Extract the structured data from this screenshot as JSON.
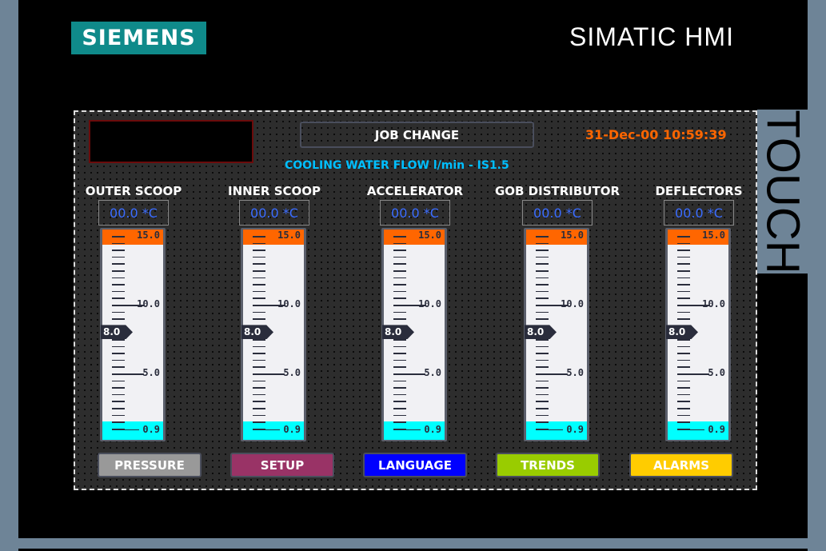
{
  "device": {
    "brand": "SIEMENS",
    "model": "SIMATIC HMI",
    "side_label": "TOUCH"
  },
  "header": {
    "job_change_label": "JOB CHANGE",
    "datetime": "31-Dec-00 10:59:39",
    "title": "COOLING WATER FLOW l/min -  IS1.5"
  },
  "colors": {
    "top_band": "#ff6600",
    "bottom_band": "#00ffff",
    "datetime": "#ff6600",
    "title": "#00bfff"
  },
  "gauges": [
    {
      "label": "OUTER SCOOP",
      "temperature": "00.0 *C",
      "value": 8.0,
      "value_text": "8.0"
    },
    {
      "label": "INNER SCOOP",
      "temperature": "00.0 *C",
      "value": 8.0,
      "value_text": "8.0"
    },
    {
      "label": "ACCELERATOR",
      "temperature": "00.0 *C",
      "value": 8.0,
      "value_text": "8.0"
    },
    {
      "label": "GOB DISTRIBUTOR",
      "temperature": "00.0 *C",
      "value": 8.0,
      "value_text": "8.0"
    },
    {
      "label": "DEFLECTORS",
      "temperature": "00.0 *C",
      "value": 8.0,
      "value_text": "8.0"
    }
  ],
  "scale": {
    "max": 15.0,
    "min": 0.9,
    "labels": [
      "15.0",
      "10.0",
      "5.0",
      "0.9"
    ]
  },
  "buttons": [
    {
      "label": "PRESSURE",
      "color": "#999999"
    },
    {
      "label": "SETUP",
      "color": "#993366"
    },
    {
      "label": "LANGUAGE",
      "color": "#0000ff"
    },
    {
      "label": "TRENDS",
      "color": "#99cc00"
    },
    {
      "label": "ALARMS",
      "color": "#ffcc00"
    }
  ]
}
